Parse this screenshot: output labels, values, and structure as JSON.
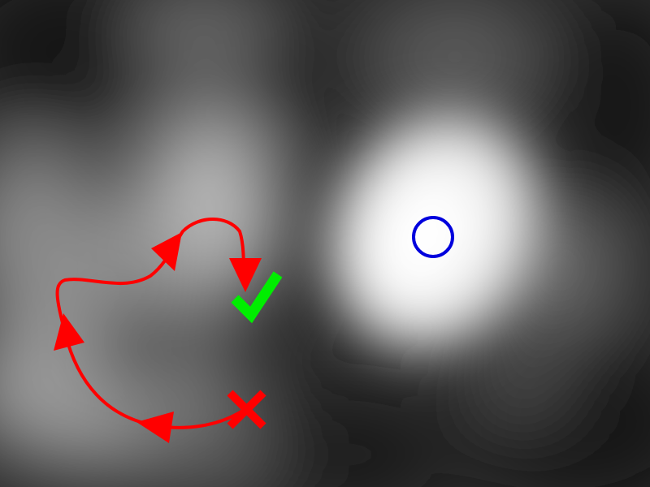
{
  "scene": {
    "background": "blurred-grayscale-heatmap",
    "colors": {
      "path": "#ff0000",
      "goal_circle": "#0000dd",
      "checkmark": "#00ee00",
      "cross": "#ff0000"
    },
    "icons": {
      "start": "cross-icon",
      "end": "checkmark-icon",
      "target": "circle-icon"
    }
  }
}
